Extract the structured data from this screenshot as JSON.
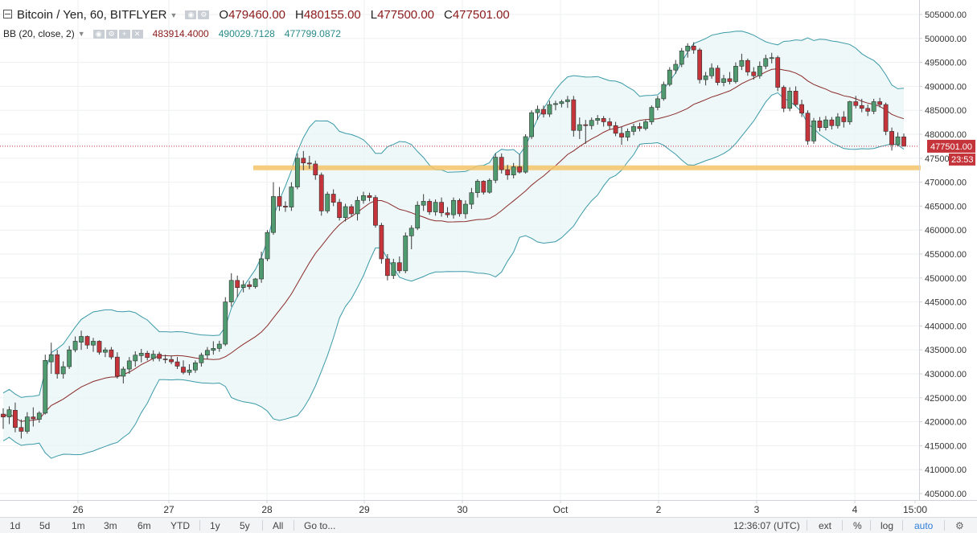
{
  "legend": {
    "symbol_title": "Bitcoin / Yen, 60, BITFLYER",
    "open_label": "O",
    "open": "479460.00",
    "high_label": "H",
    "high": "480155.00",
    "low_label": "L",
    "low": "477500.00",
    "close_label": "C",
    "close": "477501.00"
  },
  "indicator": {
    "name": "BB (20, close, 2)",
    "basis": "483914.4000",
    "upper": "490029.7128",
    "lower": "477799.0872"
  },
  "price_tag": {
    "value": "477501.00",
    "countdown": "23:53"
  },
  "toolbar": {
    "ranges": [
      "1d",
      "5d",
      "1m",
      "3m",
      "6m",
      "YTD",
      "1y",
      "5y",
      "All"
    ],
    "goto": "Go to...",
    "time": "12:36:07 (UTC)",
    "ext": "ext",
    "percent": "%",
    "log": "log",
    "auto": "auto"
  },
  "colors": {
    "up": "#4f9b6f",
    "down": "#c4343a",
    "band": "#3b9aa8",
    "band_fill": "#e8f5f5",
    "basis": "#8b2a2a",
    "support": "#f5c469"
  },
  "icons": [
    "collapse-icon",
    "eye-icon",
    "settings-icon",
    "add-icon",
    "close-icon",
    "dropdown-caret-icon"
  ],
  "chart_data": {
    "type": "candlestick",
    "title": "Bitcoin / Yen, 60, BITFLYER",
    "y_ticks": [
      405000,
      410000,
      415000,
      420000,
      425000,
      430000,
      435000,
      440000,
      445000,
      450000,
      455000,
      460000,
      465000,
      470000,
      475000,
      480000,
      485000,
      490000,
      495000,
      500000,
      505000
    ],
    "x_ticks": [
      "26",
      "27",
      "28",
      "29",
      "30",
      "Oct",
      "2",
      "3",
      "4",
      "15:00"
    ],
    "support_level": 473000,
    "last_price": 477501,
    "candles": [
      [
        421600,
        422800,
        418500,
        421000
      ],
      [
        421000,
        423200,
        419500,
        422500
      ],
      [
        422400,
        424000,
        417800,
        418800
      ],
      [
        418800,
        420500,
        416500,
        418000
      ],
      [
        418000,
        422000,
        417500,
        421000
      ],
      [
        421000,
        423000,
        419000,
        420600
      ],
      [
        420500,
        422200,
        419800,
        421800
      ],
      [
        421800,
        434000,
        421500,
        432800
      ],
      [
        432500,
        436500,
        430000,
        434000
      ],
      [
        434000,
        435000,
        429000,
        430000
      ],
      [
        430000,
        432600,
        429000,
        431500
      ],
      [
        431500,
        435800,
        431000,
        435000
      ],
      [
        435000,
        437800,
        434500,
        436800
      ],
      [
        436600,
        439000,
        435000,
        437800
      ],
      [
        437800,
        438000,
        435200,
        436000
      ],
      [
        436000,
        437500,
        434600,
        436800
      ],
      [
        436800,
        437000,
        434000,
        434500
      ],
      [
        434500,
        435500,
        433500,
        435000
      ],
      [
        435000,
        435600,
        433000,
        433500
      ],
      [
        433500,
        434500,
        429000,
        429500
      ],
      [
        429500,
        431500,
        428000,
        431000
      ],
      [
        431000,
        433500,
        430000,
        432700
      ],
      [
        432700,
        434700,
        431500,
        433900
      ],
      [
        433800,
        435200,
        432400,
        434300
      ],
      [
        434300,
        434800,
        432800,
        433400
      ],
      [
        433200,
        434900,
        432600,
        434100
      ],
      [
        434100,
        434600,
        432600,
        433200
      ],
      [
        433100,
        434000,
        432200,
        433000
      ],
      [
        433000,
        433800,
        432000,
        432500
      ],
      [
        432500,
        433500,
        431000,
        431600
      ],
      [
        431400,
        432800,
        429900,
        430300
      ],
      [
        430300,
        432000,
        429700,
        430800
      ],
      [
        430800,
        432800,
        430200,
        432300
      ],
      [
        432300,
        434400,
        431500,
        433900
      ],
      [
        433900,
        435600,
        433100,
        434900
      ],
      [
        434900,
        436800,
        434000,
        435300
      ],
      [
        435300,
        436900,
        434600,
        436200
      ],
      [
        436200,
        446000,
        435800,
        445000
      ],
      [
        445000,
        451000,
        444000,
        449500
      ],
      [
        449500,
        450500,
        446000,
        448000
      ],
      [
        448000,
        449500,
        447000,
        448600
      ],
      [
        448600,
        449400,
        447600,
        448200
      ],
      [
        448200,
        450000,
        447800,
        449800
      ],
      [
        449800,
        455500,
        449000,
        454000
      ],
      [
        454000,
        460000,
        453500,
        459500
      ],
      [
        459500,
        470000,
        459000,
        467000
      ],
      [
        467000,
        469000,
        464000,
        465000
      ],
      [
        465000,
        466000,
        463800,
        464800
      ],
      [
        464800,
        470000,
        464000,
        469000
      ],
      [
        469000,
        476000,
        468500,
        475000
      ],
      [
        475000,
        476500,
        472500,
        474000
      ],
      [
        474000,
        475500,
        472800,
        473800
      ],
      [
        473800,
        474500,
        470500,
        471500
      ],
      [
        471500,
        472000,
        463000,
        464000
      ],
      [
        464000,
        468000,
        463500,
        467500
      ],
      [
        467500,
        468500,
        465000,
        465800
      ],
      [
        465800,
        466500,
        462000,
        462600
      ],
      [
        462600,
        465500,
        461800,
        464900
      ],
      [
        464900,
        465400,
        462800,
        463400
      ],
      [
        463400,
        467000,
        462000,
        466200
      ],
      [
        466200,
        468000,
        465500,
        467200
      ],
      [
        467200,
        467800,
        466000,
        466800
      ],
      [
        466800,
        467300,
        460500,
        461000
      ],
      [
        461000,
        461500,
        453000,
        454000
      ],
      [
        454000,
        455000,
        449500,
        450500
      ],
      [
        450500,
        454000,
        449800,
        453200
      ],
      [
        453200,
        454500,
        451000,
        451500
      ],
      [
        451500,
        459500,
        451000,
        458800
      ],
      [
        458800,
        461000,
        456000,
        460400
      ],
      [
        460400,
        466000,
        460000,
        465200
      ],
      [
        465200,
        467500,
        464000,
        466000
      ],
      [
        466000,
        466500,
        463200,
        463800
      ],
      [
        463800,
        466400,
        463000,
        465800
      ],
      [
        465800,
        466800,
        462800,
        463600
      ],
      [
        463600,
        464800,
        462600,
        463200
      ],
      [
        463200,
        466800,
        462400,
        466200
      ],
      [
        466200,
        466600,
        462800,
        463400
      ],
      [
        463400,
        466200,
        462400,
        465400
      ],
      [
        465400,
        468800,
        464400,
        467800
      ],
      [
        467800,
        470600,
        466800,
        470200
      ],
      [
        470200,
        470400,
        467400,
        467900
      ],
      [
        467900,
        470800,
        467600,
        470400
      ],
      [
        470400,
        476000,
        469800,
        475200
      ],
      [
        475200,
        476000,
        471800,
        472600
      ],
      [
        472600,
        473600,
        470500,
        471500
      ],
      [
        471500,
        474000,
        470800,
        473200
      ],
      [
        473200,
        475800,
        471800,
        472100
      ],
      [
        472100,
        480000,
        471800,
        479500
      ],
      [
        479500,
        485000,
        479000,
        484500
      ],
      [
        484500,
        486000,
        483000,
        485200
      ],
      [
        485200,
        486000,
        483500,
        484200
      ],
      [
        484200,
        487000,
        483600,
        486200
      ],
      [
        486200,
        487000,
        485000,
        486400
      ],
      [
        486400,
        487200,
        485600,
        486800
      ],
      [
        486800,
        488000,
        485500,
        487200
      ],
      [
        487200,
        488000,
        479500,
        480800
      ],
      [
        480800,
        483500,
        479000,
        482000
      ],
      [
        482000,
        483000,
        478000,
        481800
      ],
      [
        481800,
        483500,
        481000,
        482900
      ],
      [
        482900,
        484000,
        482000,
        483300
      ],
      [
        483300,
        483800,
        481600,
        482600
      ],
      [
        482600,
        483400,
        481000,
        481800
      ],
      [
        481800,
        482600,
        479600,
        480200
      ],
      [
        480200,
        481600,
        477800,
        479400
      ],
      [
        479400,
        481200,
        478600,
        480600
      ],
      [
        480600,
        482200,
        479800,
        481600
      ],
      [
        481600,
        482400,
        480600,
        481200
      ],
      [
        481200,
        483000,
        480800,
        482600
      ],
      [
        482600,
        486000,
        482000,
        485600
      ],
      [
        485600,
        488000,
        485000,
        487400
      ],
      [
        487400,
        491000,
        487000,
        490400
      ],
      [
        490400,
        494000,
        490000,
        493400
      ],
      [
        493400,
        495500,
        492600,
        494600
      ],
      [
        494600,
        498000,
        494000,
        497400
      ],
      [
        497400,
        499000,
        496000,
        498400
      ],
      [
        498400,
        499200,
        496800,
        497600
      ],
      [
        497600,
        498000,
        490600,
        491400
      ],
      [
        491400,
        493000,
        490200,
        492200
      ],
      [
        492200,
        494800,
        491600,
        493800
      ],
      [
        493800,
        494400,
        490200,
        490800
      ],
      [
        490800,
        492400,
        490000,
        491600
      ],
      [
        491600,
        493000,
        490400,
        491000
      ],
      [
        491000,
        495000,
        490600,
        494200
      ],
      [
        494200,
        496800,
        493400,
        495400
      ],
      [
        495400,
        495800,
        492200,
        493000
      ],
      [
        493000,
        494000,
        491400,
        492200
      ],
      [
        492200,
        495200,
        491600,
        494200
      ],
      [
        494200,
        496600,
        493600,
        495800
      ],
      [
        495800,
        497000,
        494800,
        496000
      ],
      [
        496000,
        496400,
        489000,
        489800
      ],
      [
        489800,
        490200,
        484600,
        485400
      ],
      [
        485400,
        489800,
        484800,
        489000
      ],
      [
        489000,
        490000,
        485800,
        486200
      ],
      [
        486200,
        487200,
        483600,
        484400
      ],
      [
        484400,
        485000,
        477800,
        478600
      ],
      [
        478600,
        483400,
        478000,
        482800
      ],
      [
        482800,
        483600,
        480600,
        481400
      ],
      [
        481400,
        483800,
        480800,
        483000
      ],
      [
        483000,
        483600,
        481000,
        481800
      ],
      [
        481800,
        484400,
        481200,
        483600
      ],
      [
        483600,
        484800,
        481400,
        482600
      ],
      [
        482600,
        487000,
        482000,
        486800
      ],
      [
        486800,
        488000,
        485400,
        486000
      ],
      [
        486000,
        487400,
        484600,
        485400
      ],
      [
        485400,
        486200,
        483800,
        484800
      ],
      [
        484800,
        487400,
        484200,
        486800
      ],
      [
        486800,
        487600,
        485600,
        486200
      ],
      [
        486200,
        486600,
        479800,
        480600
      ],
      [
        480600,
        481400,
        476600,
        477800
      ],
      [
        477800,
        480400,
        477400,
        479460
      ],
      [
        479460,
        480155,
        477500,
        477501
      ]
    ],
    "bollinger": {
      "period": 20,
      "stddev": 2,
      "basis": 483914.4,
      "upper": 490029.7128,
      "lower": 477799.0872
    }
  }
}
